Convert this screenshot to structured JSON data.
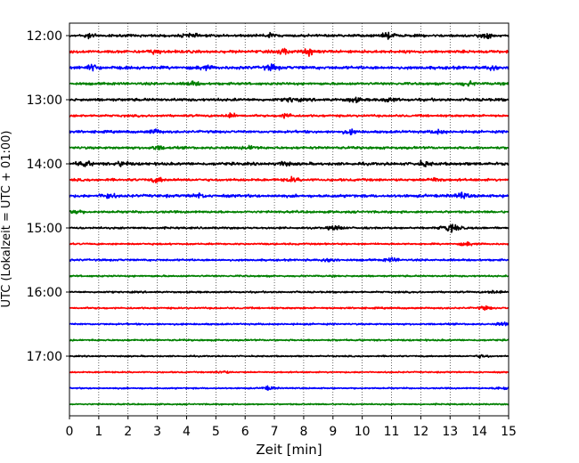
{
  "chart_data": {
    "type": "line",
    "title": "",
    "xlabel": "Zeit  [min]",
    "ylabel": "UTC (Lokalzeit = UTC + 01:00)",
    "xlim": [
      0,
      15
    ],
    "x_ticks": [
      "0",
      "1",
      "2",
      "3",
      "4",
      "5",
      "6",
      "7",
      "8",
      "9",
      "10",
      "11",
      "12",
      "13",
      "14",
      "15"
    ],
    "y_ticks": [
      "12:00",
      "13:00",
      "14:00",
      "15:00",
      "16:00",
      "17:00"
    ],
    "y_tick_hours": [
      12,
      13,
      14,
      15,
      16,
      17
    ],
    "grid": "vertical dotted at each minute",
    "trace_interval_minutes": 15,
    "trace_start": "12:00",
    "trace_count": 24,
    "trace_colors": [
      "#000000",
      "#ff0000",
      "#0000ff",
      "#008000"
    ],
    "series": [
      {
        "start": "12:00",
        "amp": 0.9,
        "bursts": [
          {
            "t": 0.7,
            "a": 1.6
          },
          {
            "t": 4.1,
            "a": 1.4
          },
          {
            "t": 6.8,
            "a": 1.4
          },
          {
            "t": 10.9,
            "a": 2.0
          },
          {
            "t": 14.2,
            "a": 1.8
          }
        ]
      },
      {
        "start": "12:15",
        "amp": 1.0,
        "bursts": [
          {
            "t": 2.9,
            "a": 1.4
          },
          {
            "t": 7.3,
            "a": 1.6
          },
          {
            "t": 8.2,
            "a": 2.2
          }
        ]
      },
      {
        "start": "12:30",
        "amp": 1.1,
        "bursts": [
          {
            "t": 0.8,
            "a": 2.0
          },
          {
            "t": 4.6,
            "a": 1.4
          },
          {
            "t": 6.9,
            "a": 2.0
          },
          {
            "t": 14.5,
            "a": 1.4
          }
        ]
      },
      {
        "start": "12:45",
        "amp": 0.9,
        "bursts": [
          {
            "t": 4.2,
            "a": 1.4
          },
          {
            "t": 13.6,
            "a": 1.6
          }
        ]
      },
      {
        "start": "13:00",
        "amp": 1.0,
        "bursts": [
          {
            "t": 7.6,
            "a": 1.6
          },
          {
            "t": 9.7,
            "a": 1.6
          },
          {
            "t": 10.9,
            "a": 1.4
          }
        ]
      },
      {
        "start": "13:15",
        "amp": 0.8,
        "bursts": [
          {
            "t": 5.5,
            "a": 1.4
          },
          {
            "t": 7.4,
            "a": 1.6
          }
        ]
      },
      {
        "start": "13:30",
        "amp": 0.9,
        "bursts": [
          {
            "t": 2.9,
            "a": 1.6
          },
          {
            "t": 9.6,
            "a": 1.4
          },
          {
            "t": 12.6,
            "a": 1.4
          }
        ]
      },
      {
        "start": "13:45",
        "amp": 0.9,
        "bursts": [
          {
            "t": 3.0,
            "a": 1.4
          },
          {
            "t": 6.2,
            "a": 1.4
          }
        ]
      },
      {
        "start": "14:00",
        "amp": 1.0,
        "bursts": [
          {
            "t": 0.5,
            "a": 2.0
          },
          {
            "t": 1.8,
            "a": 1.8
          },
          {
            "t": 7.3,
            "a": 1.6
          },
          {
            "t": 12.1,
            "a": 1.6
          }
        ]
      },
      {
        "start": "14:15",
        "amp": 0.9,
        "bursts": [
          {
            "t": 3.0,
            "a": 1.6
          },
          {
            "t": 7.6,
            "a": 1.4
          },
          {
            "t": 12.5,
            "a": 1.4
          }
        ]
      },
      {
        "start": "14:30",
        "amp": 1.0,
        "bursts": [
          {
            "t": 1.3,
            "a": 2.0
          },
          {
            "t": 4.4,
            "a": 1.4
          },
          {
            "t": 13.4,
            "a": 2.0
          }
        ]
      },
      {
        "start": "14:45",
        "amp": 0.8,
        "bursts": [
          {
            "t": 0.2,
            "a": 1.6
          }
        ]
      },
      {
        "start": "15:00",
        "amp": 0.7,
        "bursts": [
          {
            "t": 9.1,
            "a": 1.8
          },
          {
            "t": 12.9,
            "a": 2.2
          },
          {
            "t": 13.2,
            "a": 1.8
          }
        ]
      },
      {
        "start": "15:15",
        "amp": 0.6,
        "bursts": [
          {
            "t": 13.6,
            "a": 1.4
          }
        ]
      },
      {
        "start": "15:30",
        "amp": 0.7,
        "bursts": [
          {
            "t": 8.9,
            "a": 1.6
          },
          {
            "t": 11.0,
            "a": 1.4
          }
        ]
      },
      {
        "start": "15:45",
        "amp": 0.6,
        "bursts": []
      },
      {
        "start": "16:00",
        "amp": 0.6,
        "bursts": [
          {
            "t": 14.5,
            "a": 1.2
          }
        ]
      },
      {
        "start": "16:15",
        "amp": 0.6,
        "bursts": [
          {
            "t": 14.2,
            "a": 1.2
          }
        ]
      },
      {
        "start": "16:30",
        "amp": 0.6,
        "bursts": [
          {
            "t": 14.8,
            "a": 1.2
          }
        ]
      },
      {
        "start": "16:45",
        "amp": 0.6,
        "bursts": []
      },
      {
        "start": "17:00",
        "amp": 0.5,
        "bursts": [
          {
            "t": 14.1,
            "a": 1.2
          }
        ]
      },
      {
        "start": "17:15",
        "amp": 0.5,
        "bursts": [
          {
            "t": 5.2,
            "a": 1.2
          }
        ]
      },
      {
        "start": "17:30",
        "amp": 0.5,
        "bursts": [
          {
            "t": 6.8,
            "a": 1.4
          },
          {
            "t": 14.8,
            "a": 1.4
          }
        ]
      },
      {
        "start": "17:45",
        "amp": 0.5,
        "bursts": []
      }
    ]
  }
}
